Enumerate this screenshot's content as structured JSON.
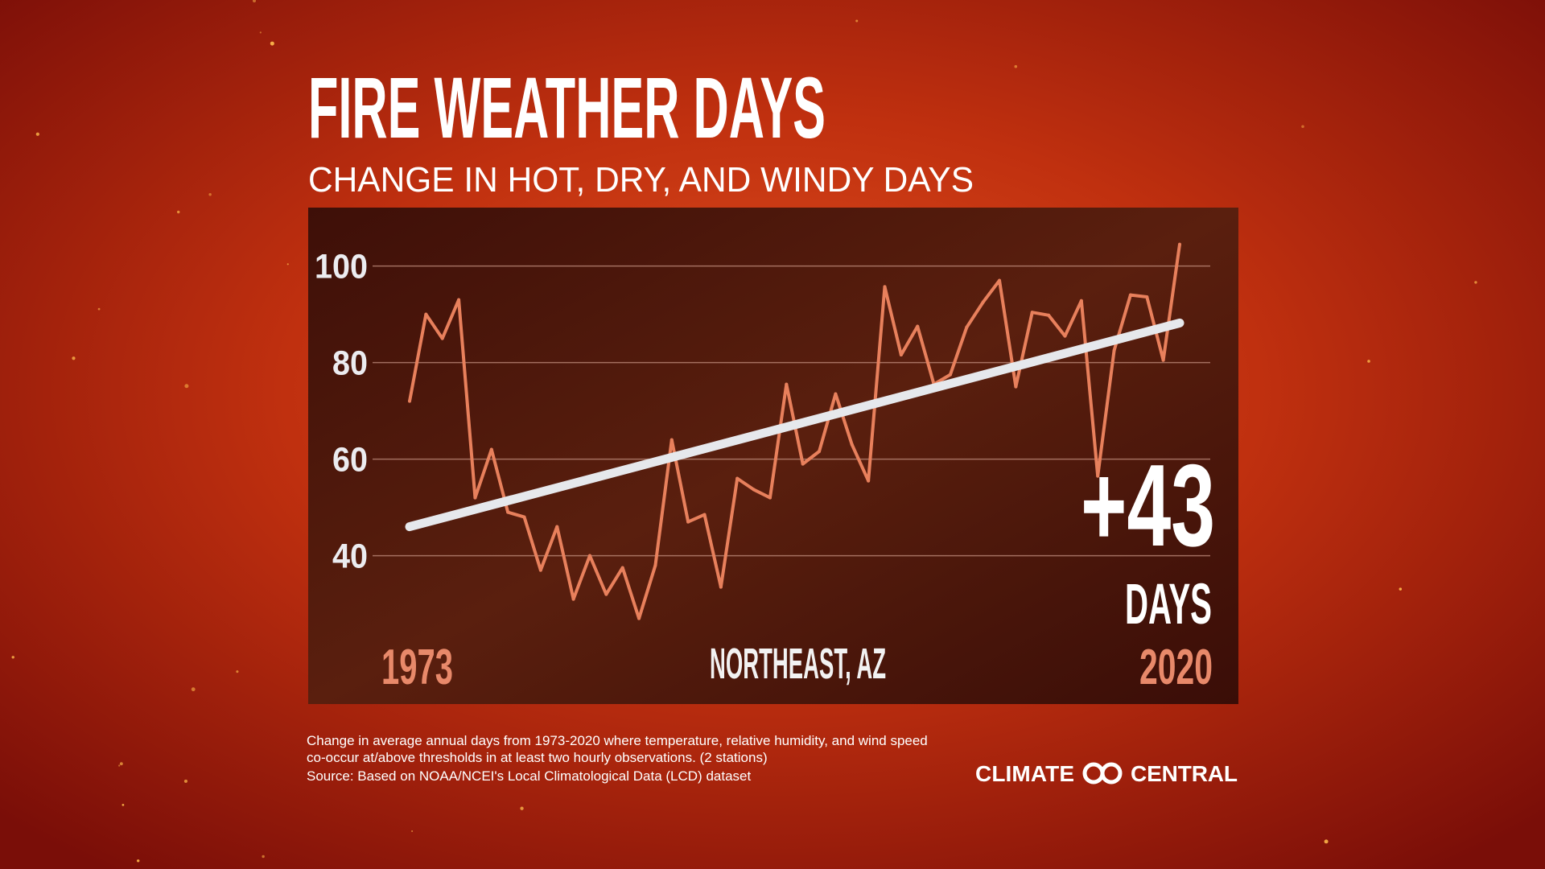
{
  "header": {
    "title": "FIRE WEATHER DAYS",
    "subtitle": "CHANGE IN HOT, DRY, AND WINDY DAYS"
  },
  "chart_data": {
    "type": "line",
    "title": "FIRE WEATHER DAYS",
    "subtitle": "CHANGE IN HOT, DRY, AND WINDY DAYS",
    "location": "NORTHEAST, AZ",
    "x_start_label": "1973",
    "x_end_label": "2020",
    "yticks": [
      100,
      80,
      60,
      40
    ],
    "ylim": [
      20,
      110
    ],
    "xlim": [
      1973,
      2020
    ],
    "grid": true,
    "x": [
      1973,
      1974,
      1975,
      1976,
      1977,
      1978,
      1979,
      1980,
      1981,
      1982,
      1983,
      1984,
      1985,
      1986,
      1987,
      1988,
      1989,
      1990,
      1991,
      1992,
      1993,
      1994,
      1995,
      1996,
      1997,
      1998,
      1999,
      2000,
      2001,
      2002,
      2003,
      2004,
      2005,
      2006,
      2007,
      2008,
      2009,
      2010,
      2011,
      2012,
      2013,
      2014,
      2015,
      2016,
      2017,
      2018,
      2019,
      2020
    ],
    "series": [
      {
        "values": [
          72,
          90,
          85,
          93,
          52,
          62,
          49,
          48,
          37,
          46,
          31,
          40,
          32,
          37.5,
          27,
          38,
          64,
          47,
          48.5,
          33.5,
          56,
          53.7,
          52,
          75.5,
          59,
          61.6,
          73.5,
          63,
          55.5,
          95.7,
          81.6,
          87.5,
          75.5,
          77.5,
          87.3,
          92.5,
          97,
          75,
          90.4,
          89.8,
          85.5,
          92.8,
          56.5,
          82.5,
          94,
          93.6,
          80.5,
          104.5
        ],
        "color": "#e8805c"
      }
    ],
    "trend": {
      "start": [
        1973,
        46
      ],
      "end": [
        2020,
        88.2
      ],
      "color": "#e6e8ec"
    },
    "callout_value": "+43",
    "callout_unit": "DAYS"
  },
  "footer": {
    "note_line1": "Change in average annual days from 1973-2020 where temperature, relative humidity, and wind speed",
    "note_line2": "co-occur at/above thresholds in at least two hourly observations.  (2 stations)",
    "source": "Source: Based on NOAA/NCEI's Local Climatological Data (LCD) dataset",
    "logo_left": "CLIMATE",
    "logo_right": "CENTRAL",
    "logo_icon": "infinity-rings-icon"
  },
  "colors": {
    "accent_year": "#e8896a",
    "panel": "#4a1409",
    "background": "#b8230f"
  }
}
